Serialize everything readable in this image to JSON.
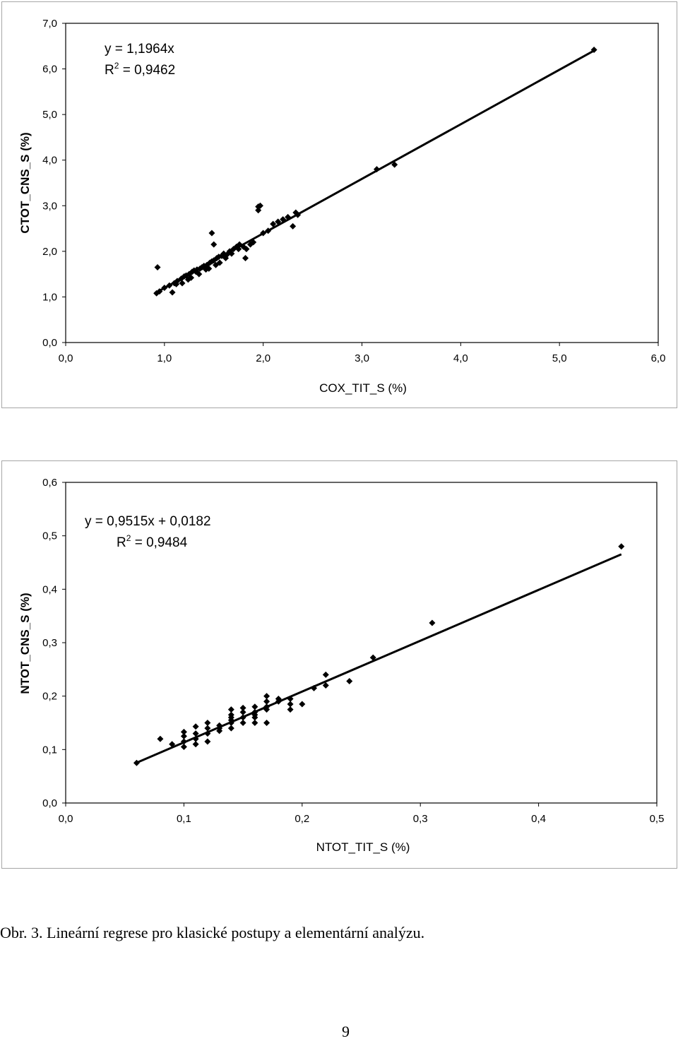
{
  "chart_data": [
    {
      "type": "scatter",
      "xlabel": "COX_TIT_S (%)",
      "ylabel": "CTOT_CNS_S (%)",
      "xlim": [
        0,
        6
      ],
      "ylim": [
        0,
        7
      ],
      "xticks": [
        "0,0",
        "1,0",
        "2,0",
        "3,0",
        "4,0",
        "5,0",
        "6,0"
      ],
      "yticks": [
        "0,0",
        "1,0",
        "2,0",
        "3,0",
        "4,0",
        "5,0",
        "6,0",
        "7,0"
      ],
      "grid": false,
      "legend": "none",
      "trendline": {
        "slope": 1.1964,
        "intercept": 0,
        "x_range": [
          0.9,
          5.35
        ]
      },
      "equation": "y = 1,1964x",
      "r2_label": "R",
      "r2_sup": "2",
      "r2_value": " = 0,9462",
      "series": [
        {
          "marker": "diamond",
          "x": [
            0.92,
            0.95,
            1.0,
            1.05,
            1.1,
            1.13,
            1.17,
            1.2,
            1.22,
            1.25,
            1.28,
            1.3,
            1.33,
            1.36,
            1.38,
            1.4,
            1.43,
            1.46,
            1.48,
            1.5,
            1.53,
            1.55,
            1.58,
            1.6,
            1.63,
            1.66,
            1.7,
            1.73,
            1.76,
            1.8,
            1.83,
            1.87,
            1.9,
            1.95,
            2.0,
            2.05,
            2.1,
            2.2,
            2.25,
            2.3,
            2.35,
            0.93,
            1.48,
            1.5,
            1.95,
            1.97,
            1.08,
            1.12,
            1.18,
            1.24,
            1.27,
            1.32,
            1.35,
            1.42,
            1.45,
            1.52,
            1.56,
            1.62,
            1.68,
            1.75,
            1.82,
            2.15,
            2.33,
            3.15,
            3.33,
            5.35
          ],
          "y": [
            1.08,
            1.12,
            1.2,
            1.25,
            1.3,
            1.35,
            1.4,
            1.45,
            1.47,
            1.5,
            1.55,
            1.58,
            1.6,
            1.62,
            1.65,
            1.68,
            1.7,
            1.75,
            1.78,
            1.8,
            1.85,
            1.88,
            1.9,
            1.95,
            1.92,
            2.0,
            2.05,
            2.1,
            2.15,
            2.1,
            2.05,
            2.15,
            2.2,
            2.9,
            2.4,
            2.45,
            2.6,
            2.7,
            2.75,
            2.55,
            2.8,
            1.65,
            2.4,
            2.15,
            2.98,
            3.0,
            1.1,
            1.28,
            1.3,
            1.38,
            1.42,
            1.55,
            1.5,
            1.6,
            1.62,
            1.7,
            1.75,
            1.85,
            1.95,
            2.05,
            1.85,
            2.65,
            2.85,
            3.8,
            3.9,
            6.42
          ]
        }
      ]
    },
    {
      "type": "scatter",
      "xlabel": "NTOT_TIT_S (%)",
      "ylabel": "NTOT_CNS_S (%)",
      "xlim": [
        0,
        0.5
      ],
      "ylim": [
        0,
        0.6
      ],
      "xticks": [
        "0,0",
        "0,1",
        "0,2",
        "0,3",
        "0,4",
        "0,5"
      ],
      "yticks": [
        "0,0",
        "0,1",
        "0,2",
        "0,3",
        "0,4",
        "0,5",
        "0,6"
      ],
      "grid": false,
      "legend": "none",
      "trendline": {
        "slope": 0.9515,
        "intercept": 0.0182,
        "x_range": [
          0.06,
          0.47
        ]
      },
      "equation": "y = 0,9515x + 0,0182",
      "r2_label": "R",
      "r2_sup": "2",
      "r2_value": " = 0,9484",
      "series": [
        {
          "marker": "diamond",
          "x": [
            0.06,
            0.08,
            0.09,
            0.1,
            0.1,
            0.1,
            0.1,
            0.11,
            0.11,
            0.11,
            0.11,
            0.12,
            0.12,
            0.12,
            0.12,
            0.13,
            0.13,
            0.13,
            0.14,
            0.14,
            0.14,
            0.14,
            0.14,
            0.14,
            0.15,
            0.15,
            0.15,
            0.15,
            0.16,
            0.16,
            0.16,
            0.16,
            0.16,
            0.17,
            0.17,
            0.17,
            0.17,
            0.17,
            0.18,
            0.18,
            0.19,
            0.19,
            0.19,
            0.2,
            0.21,
            0.22,
            0.22,
            0.24,
            0.26,
            0.31,
            0.47
          ],
          "y": [
            0.075,
            0.12,
            0.11,
            0.105,
            0.115,
            0.125,
            0.133,
            0.11,
            0.12,
            0.13,
            0.143,
            0.115,
            0.13,
            0.14,
            0.15,
            0.135,
            0.145,
            0.14,
            0.14,
            0.15,
            0.155,
            0.16,
            0.165,
            0.175,
            0.15,
            0.16,
            0.17,
            0.178,
            0.15,
            0.16,
            0.165,
            0.17,
            0.18,
            0.15,
            0.175,
            0.18,
            0.19,
            0.2,
            0.19,
            0.195,
            0.175,
            0.185,
            0.195,
            0.185,
            0.215,
            0.22,
            0.24,
            0.228,
            0.272,
            0.337,
            0.48
          ]
        }
      ]
    }
  ],
  "caption": "Obr. 3. Lineární regrese pro klasické postupy a elementární analýzu.",
  "page_number": "9"
}
